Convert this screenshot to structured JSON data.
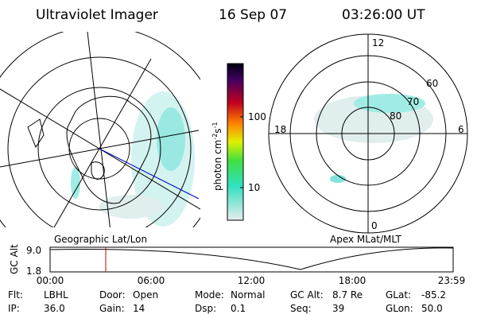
{
  "header": {
    "instrument": "Ultraviolet Imager",
    "date": "16 Sep 07",
    "time": "03:26:00 UT"
  },
  "left_panel": {
    "label": "Geographic Lat/Lon"
  },
  "colorbar": {
    "ticks": [
      "100",
      "10"
    ],
    "unit": "photon cm",
    "exp1": "-2",
    "unit2": "s",
    "exp2": "-1"
  },
  "right_panel": {
    "label": "Apex MLat/MLT",
    "mlt_labels": [
      "12",
      "18",
      "6",
      "0"
    ],
    "lat_labels": [
      "80",
      "70",
      "60"
    ]
  },
  "altitude_plot": {
    "ylabel": "GC Alt",
    "yticks": [
      "9.0",
      "1.8"
    ],
    "xticks": [
      "00:00",
      "06:00",
      "12:00",
      "18:00",
      "23:59"
    ]
  },
  "footer": [
    {
      "label": "Flt:",
      "value": "LBHL"
    },
    {
      "label": "Door:",
      "value": "Open"
    },
    {
      "label": "Mode:",
      "value": "Normal"
    },
    {
      "label": "GC Alt:",
      "value": "8.7 Re"
    },
    {
      "label": "GLat:",
      "value": "-85.2"
    },
    {
      "label": "IP:",
      "value": "36.0"
    },
    {
      "label": "Gain:",
      "value": "14"
    },
    {
      "label": "Dsp:",
      "value": "0.1"
    },
    {
      "label": "Seq:",
      "value": "39"
    },
    {
      "label": "GLon:",
      "value": "50.0"
    }
  ]
}
